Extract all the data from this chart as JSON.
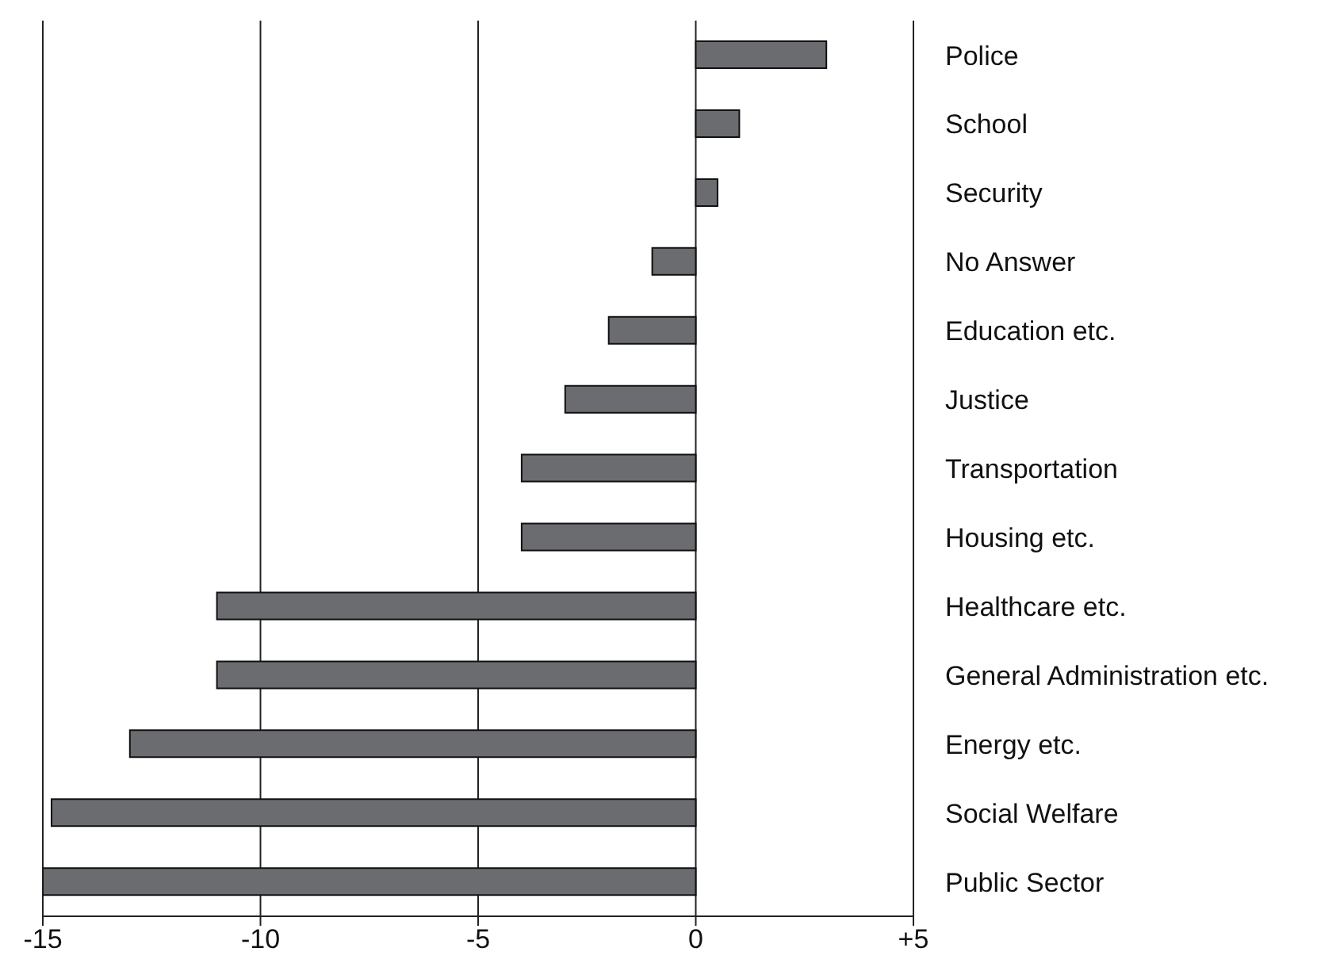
{
  "chart_data": {
    "type": "bar",
    "orientation": "horizontal",
    "categories": [
      "Police",
      "School",
      "Security",
      "No Answer",
      "Education etc.",
      "Justice",
      "Transportation",
      "Housing etc.",
      "Healthcare etc.",
      "General Administration etc.",
      "Energy etc.",
      "Social Welfare",
      "Public Sector"
    ],
    "values": [
      3,
      1,
      0.5,
      -1,
      -2,
      -3,
      -4,
      -4,
      -11,
      -11,
      -13,
      -14.8,
      -15
    ],
    "color": "#6b6c70",
    "xlim": [
      -15,
      5
    ],
    "xticks": [
      -15,
      -10,
      -5,
      0,
      {
        "value": 5,
        "label": "+5"
      }
    ],
    "grid": "x"
  }
}
